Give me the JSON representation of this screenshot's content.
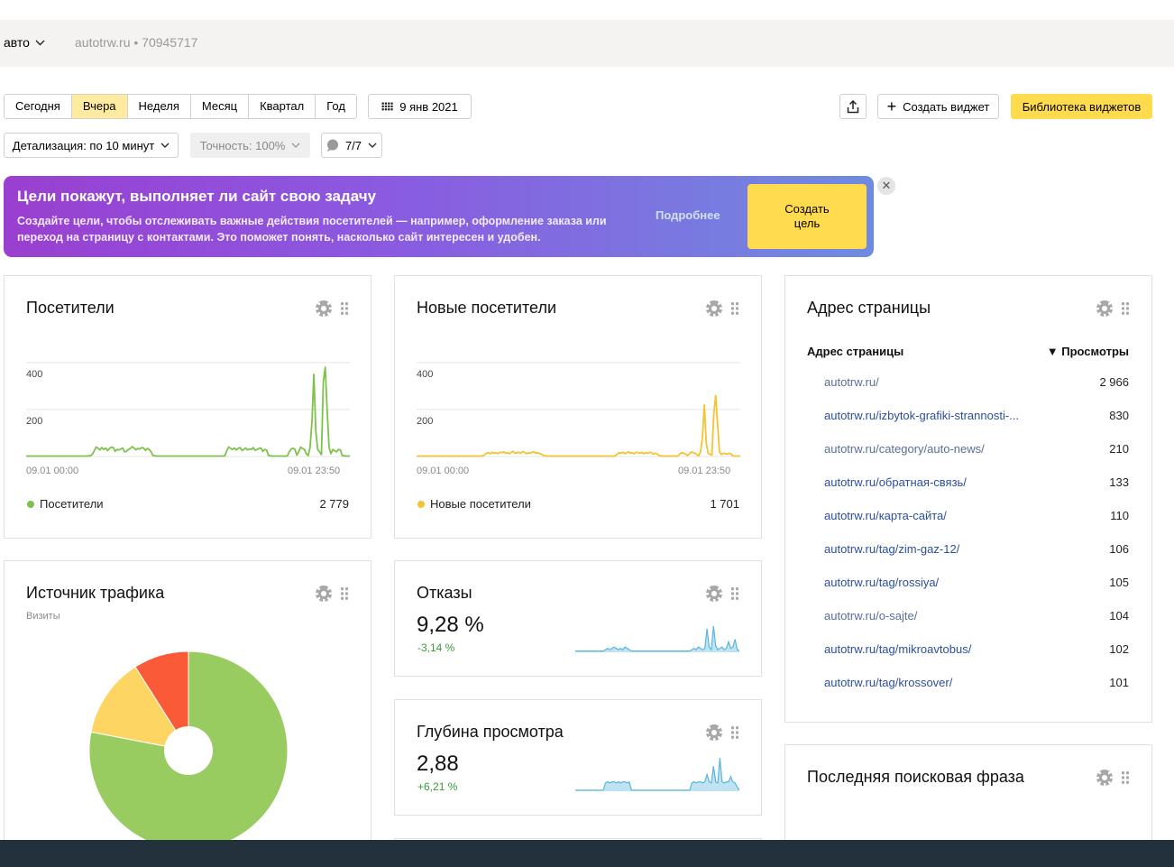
{
  "header": {
    "counter_select": "авто",
    "site": "autotrw.ru • 70945717"
  },
  "period": {
    "options": [
      "Сегодня",
      "Вчера",
      "Неделя",
      "Месяц",
      "Квартал",
      "Год"
    ],
    "active": "Вчера",
    "date": "9 янв 2021"
  },
  "toolbar": {
    "create_widget": "Создать виджет",
    "widget_library": "Библиотека виджетов",
    "detail": "Детализация: по 10 минут",
    "accuracy": "Точность: 100%",
    "segments": "7/7"
  },
  "banner": {
    "title": "Цели покажут, выполняет ли сайт свою задачу",
    "text": "Создайте цели, чтобы отслеживать важные действия посетителей — например, оформление заказа или переход на страницу с контактами. Это поможет понять, насколько сайт интересен и удобен.",
    "more": "Подробнее",
    "cta": "Создать цель"
  },
  "widgets": {
    "visitors": {
      "title": "Посетители",
      "legend": "Посетители",
      "total": "2 779",
      "color": "#7dc24b"
    },
    "new_visitors": {
      "title": "Новые посетители",
      "legend": "Новые посетители",
      "total": "1 701",
      "color": "#f5c331"
    },
    "traffic_source": {
      "title": "Источник трафика",
      "subtitle": "Визиты"
    },
    "bounces": {
      "title": "Отказы",
      "value": "9,28 %",
      "delta": "-3,14 %"
    },
    "depth": {
      "title": "Глубина просмотра",
      "value": "2,88",
      "delta": "+6,21 %"
    },
    "pages": {
      "title": "Адрес страницы",
      "col_page": "Адрес страницы",
      "col_views": "▼ Просмотры",
      "rows": [
        {
          "url": "autotrw.ru/",
          "views": "2 966",
          "visited": false
        },
        {
          "url": "autotrw.ru/izbytok-grafiki-strannosti-...",
          "views": "830",
          "visited": true
        },
        {
          "url": "autotrw.ru/category/auto-news/",
          "views": "210",
          "visited": false
        },
        {
          "url": "autotrw.ru/обратная-связь/",
          "views": "133",
          "visited": true
        },
        {
          "url": "autotrw.ru/карта-сайта/",
          "views": "110",
          "visited": true
        },
        {
          "url": "autotrw.ru/tag/zim-gaz-12/",
          "views": "106",
          "visited": true
        },
        {
          "url": "autotrw.ru/tag/rossiya/",
          "views": "105",
          "visited": true
        },
        {
          "url": "autotrw.ru/o-sajte/",
          "views": "104",
          "visited": false
        },
        {
          "url": "autotrw.ru/tag/mikroavtobus/",
          "views": "102",
          "visited": true
        },
        {
          "url": "autotrw.ru/tag/krossover/",
          "views": "101",
          "visited": true
        }
      ]
    },
    "search_phrase": {
      "title": "Последняя поисковая фраза"
    }
  },
  "chart_data": [
    {
      "type": "line",
      "title": "Посетители",
      "x_ticks": [
        "09.01 00:00",
        "09.01 23:50"
      ],
      "y_ticks": [
        "400",
        "200"
      ],
      "ylim": [
        0,
        480
      ],
      "series": [
        {
          "name": "Посетители",
          "color": "#7dc24b",
          "values": [
            2,
            2,
            2,
            2,
            2,
            2,
            2,
            2,
            2,
            2,
            2,
            2,
            2,
            2,
            2,
            2,
            2,
            2,
            2,
            2,
            2,
            2,
            2,
            2,
            2,
            2,
            2,
            2,
            2,
            2,
            2,
            2,
            2,
            3,
            3,
            10,
            25,
            40,
            35,
            28,
            38,
            30,
            36,
            25,
            34,
            40,
            38,
            22,
            30,
            28,
            32,
            36,
            20,
            22,
            30,
            34,
            42,
            36,
            28,
            34,
            32,
            38,
            36,
            26,
            34,
            30,
            20,
            4,
            3,
            2,
            2,
            2,
            2,
            2,
            2,
            2,
            2,
            2,
            2,
            2,
            2,
            2,
            2,
            2,
            2,
            2,
            2,
            2,
            2,
            2,
            2,
            2,
            2,
            2,
            2,
            2,
            2,
            2,
            2,
            2,
            2,
            2,
            2,
            2,
            2,
            3,
            25,
            40,
            35,
            30,
            36,
            28,
            34,
            38,
            26,
            30,
            36,
            28,
            32,
            30,
            38,
            26,
            30,
            34,
            36,
            22,
            30,
            28,
            5,
            3,
            2,
            2,
            2,
            2,
            2,
            2,
            2,
            2,
            2,
            20,
            32,
            35,
            30,
            6,
            20,
            40,
            34,
            30,
            12,
            4,
            40,
            150,
            350,
            110,
            30,
            20,
            8,
            320,
            380,
            200,
            40,
            12,
            30,
            24,
            20,
            30,
            28,
            4,
            3,
            2,
            2,
            2
          ]
        }
      ]
    },
    {
      "type": "line",
      "title": "Новые посетители",
      "x_ticks": [
        "09.01 00:00",
        "09.01 23:50"
      ],
      "y_ticks": [
        "400",
        "200"
      ],
      "ylim": [
        0,
        480
      ],
      "series": [
        {
          "name": "Новые посетители",
          "color": "#f5c331",
          "values": [
            2,
            2,
            2,
            2,
            2,
            2,
            2,
            2,
            2,
            2,
            2,
            2,
            2,
            2,
            2,
            2,
            2,
            2,
            2,
            2,
            2,
            2,
            2,
            2,
            2,
            2,
            2,
            2,
            2,
            2,
            2,
            2,
            2,
            2,
            2,
            3,
            8,
            14,
            16,
            12,
            18,
            14,
            16,
            12,
            18,
            16,
            20,
            14,
            16,
            12,
            18,
            22,
            14,
            16,
            18,
            14,
            20,
            18,
            12,
            16,
            14,
            18,
            20,
            14,
            16,
            12,
            10,
            4,
            3,
            2,
            2,
            2,
            2,
            2,
            2,
            2,
            2,
            2,
            2,
            2,
            2,
            2,
            2,
            2,
            2,
            2,
            2,
            2,
            2,
            2,
            2,
            2,
            2,
            2,
            2,
            2,
            2,
            2,
            2,
            2,
            2,
            2,
            2,
            2,
            2,
            3,
            10,
            16,
            14,
            18,
            12,
            16,
            20,
            14,
            16,
            12,
            18,
            16,
            14,
            18,
            12,
            16,
            14,
            18,
            16,
            10,
            14,
            12,
            4,
            3,
            2,
            2,
            2,
            2,
            2,
            2,
            2,
            2,
            2,
            10,
            16,
            14,
            12,
            4,
            10,
            20,
            16,
            14,
            8,
            3,
            20,
            80,
            220,
            60,
            14,
            10,
            6,
            180,
            260,
            140,
            20,
            8,
            14,
            12,
            10,
            14,
            12,
            3,
            2,
            2,
            2,
            2
          ]
        }
      ]
    },
    {
      "type": "pie",
      "title": "Источник трафика",
      "subtitle": "Визиты",
      "slices": [
        {
          "name": "",
          "value": 78,
          "color": "#98cc60"
        },
        {
          "name": "",
          "value": 13,
          "color": "#fdd563"
        },
        {
          "name": "",
          "value": 9,
          "color": "#fb5a38"
        }
      ]
    },
    {
      "type": "area",
      "title": "Отказы",
      "color": "#5ab6dd",
      "values": [
        1,
        1,
        1,
        1,
        1,
        1,
        1,
        1,
        1,
        1,
        1,
        1,
        1,
        1,
        2,
        3,
        2,
        3,
        4,
        3,
        2,
        3,
        2,
        4,
        3,
        2,
        1,
        1,
        1,
        1,
        1,
        1,
        1,
        1,
        1,
        1,
        1,
        1,
        1,
        1,
        1,
        1,
        1,
        1,
        1,
        1,
        1,
        1,
        1,
        1,
        1,
        1,
        1,
        1,
        2,
        3,
        2,
        4,
        3,
        2,
        3,
        18,
        4,
        2,
        20,
        5,
        2,
        3,
        4,
        2,
        3,
        8,
        3,
        4,
        10,
        2,
        1
      ]
    },
    {
      "type": "area",
      "title": "Глубина просмотра",
      "color": "#5ab6dd",
      "values": [
        1,
        1,
        1,
        1,
        1,
        1,
        1,
        1,
        1,
        1,
        1,
        1,
        1,
        1,
        8,
        9,
        8,
        9,
        9,
        8,
        9,
        8,
        9,
        9,
        8,
        9,
        1,
        1,
        1,
        1,
        1,
        1,
        1,
        1,
        1,
        1,
        1,
        1,
        1,
        1,
        1,
        1,
        1,
        1,
        1,
        1,
        1,
        1,
        1,
        1,
        1,
        1,
        1,
        1,
        8,
        9,
        8,
        9,
        9,
        8,
        9,
        16,
        9,
        8,
        24,
        9,
        8,
        32,
        9,
        8,
        9,
        9,
        14,
        9,
        8,
        4,
        1
      ]
    }
  ]
}
